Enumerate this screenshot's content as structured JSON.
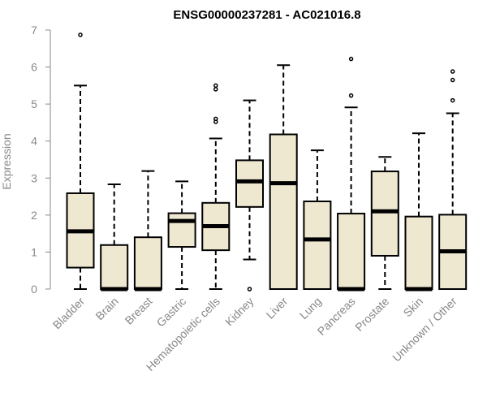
{
  "chart_data": {
    "type": "boxplot",
    "title": "ENSG00000237281 - AC021016.8",
    "xlabel": "",
    "ylabel": "Expression",
    "ylim": [
      0,
      7
    ],
    "yticks": [
      0,
      1,
      2,
      3,
      4,
      5,
      6,
      7
    ],
    "grid": false,
    "box_color": "#efe8d1",
    "categories": [
      "Bladder",
      "Brain",
      "Breast",
      "Gastric",
      "Hematopoietic cells",
      "Kidney",
      "Liver",
      "Lung",
      "Pancreas",
      "Prostate",
      "Skin",
      "Unknown / Other"
    ],
    "boxes": [
      {
        "min": 0,
        "q1": 0.58,
        "median": 1.56,
        "q3": 2.59,
        "max": 5.5,
        "outliers": [
          6.87
        ]
      },
      {
        "min": 0,
        "q1": 0,
        "median": 0,
        "q3": 1.19,
        "max": 2.83,
        "outliers": []
      },
      {
        "min": 0,
        "q1": 0,
        "median": 0,
        "q3": 1.4,
        "max": 3.19,
        "outliers": []
      },
      {
        "min": 0,
        "q1": 1.14,
        "median": 1.84,
        "q3": 2.05,
        "max": 2.91,
        "outliers": []
      },
      {
        "min": 0,
        "q1": 1.05,
        "median": 1.7,
        "q3": 2.33,
        "max": 4.07,
        "outliers": [
          4.52,
          4.6,
          5.4,
          5.5
        ]
      },
      {
        "min": 0.8,
        "q1": 2.22,
        "median": 2.91,
        "q3": 3.48,
        "max": 5.1,
        "outliers": [
          0
        ]
      },
      {
        "min": 0,
        "q1": 0,
        "median": 2.86,
        "q3": 4.18,
        "max": 6.05,
        "outliers": []
      },
      {
        "min": 0,
        "q1": 0,
        "median": 1.34,
        "q3": 2.37,
        "max": 3.75,
        "outliers": []
      },
      {
        "min": 0,
        "q1": 0,
        "median": 0,
        "q3": 2.04,
        "max": 4.91,
        "outliers": [
          5.23,
          6.22
        ]
      },
      {
        "min": 0,
        "q1": 0.9,
        "median": 2.1,
        "q3": 3.18,
        "max": 3.57,
        "outliers": []
      },
      {
        "min": 0,
        "q1": 0,
        "median": 0,
        "q3": 1.96,
        "max": 4.21,
        "outliers": []
      },
      {
        "min": 0,
        "q1": 0,
        "median": 1.02,
        "q3": 2.01,
        "max": 4.75,
        "outliers": [
          5.1,
          5.65,
          5.88
        ]
      }
    ]
  }
}
